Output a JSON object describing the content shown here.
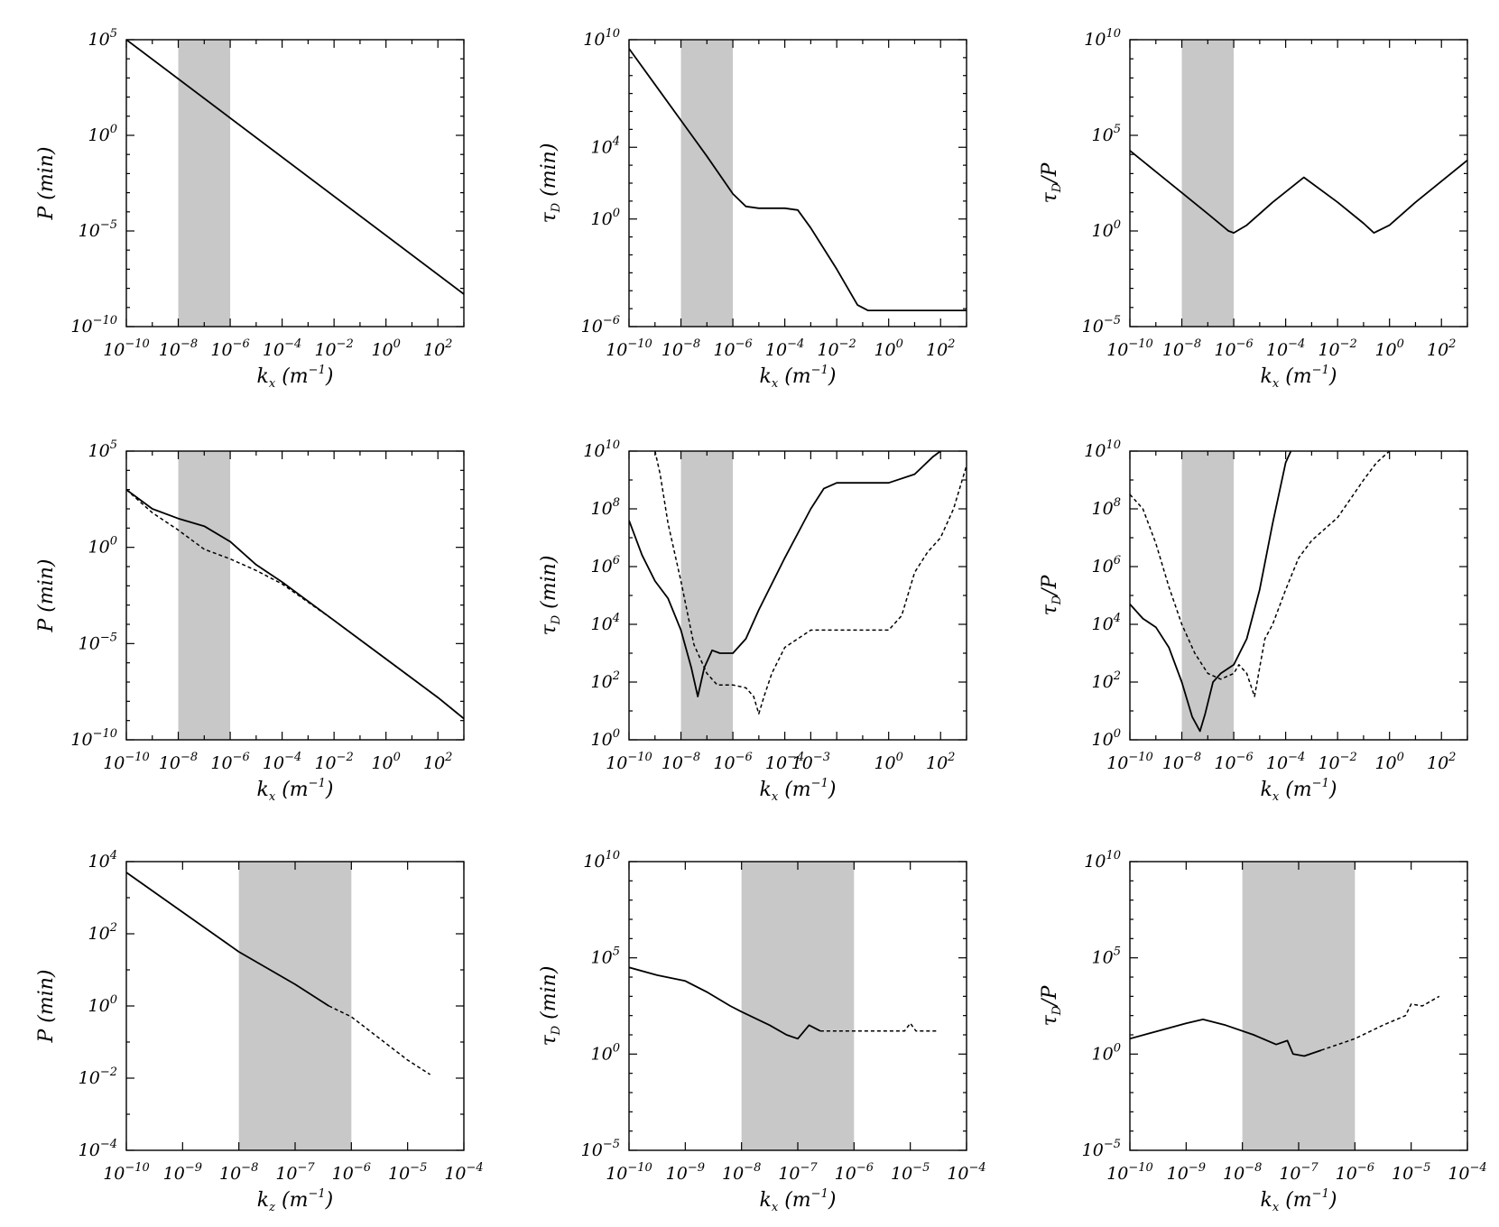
{
  "chart_data": [
    {
      "id": "r1c1",
      "type": "line",
      "x_scale": "log",
      "y_scale": "log",
      "xlabel_main": "k",
      "xlabel_sub": "x",
      "xlabel_unit": " (m",
      "xlabel_exp": "−1",
      "xlabel_close": ")",
      "ylabel_main": "P",
      "ylabel_sub": "",
      "ylabel_unit": " (min)",
      "xlim": [
        -10,
        3
      ],
      "ylim": [
        -10,
        5
      ],
      "x_ticks": [
        -10,
        -8,
        -6,
        -4,
        -2,
        0,
        2
      ],
      "y_ticks": [
        -10,
        -5,
        0,
        5
      ],
      "shaded_band": [
        -8,
        -6
      ],
      "series": [
        {
          "style": "solid",
          "points": [
            [
              -10,
              5
            ],
            [
              3,
              -8.3
            ]
          ]
        }
      ]
    },
    {
      "id": "r1c2",
      "type": "line",
      "x_scale": "log",
      "y_scale": "log",
      "xlabel_main": "k",
      "xlabel_sub": "x",
      "xlabel_unit": " (m",
      "xlabel_exp": "−1",
      "xlabel_close": ")",
      "ylabel_main": "τ",
      "ylabel_sub": "D",
      "ylabel_unit": " (min)",
      "xlim": [
        -10,
        3
      ],
      "ylim": [
        -6,
        10
      ],
      "x_ticks": [
        -10,
        -8,
        -6,
        -4,
        -2,
        0,
        2
      ],
      "y_ticks": [
        -6,
        0,
        4,
        10
      ],
      "shaded_band": [
        -8,
        -6
      ],
      "series": [
        {
          "style": "solid",
          "points": [
            [
              -10,
              9.5
            ],
            [
              -9,
              7.5
            ],
            [
              -8,
              5.5
            ],
            [
              -7,
              3.5
            ],
            [
              -6,
              1.4
            ],
            [
              -5.5,
              0.7
            ],
            [
              -5,
              0.6
            ],
            [
              -4,
              0.6
            ],
            [
              -3.5,
              0.5
            ],
            [
              -3,
              -0.5
            ],
            [
              -2,
              -2.8
            ],
            [
              -1.2,
              -4.8
            ],
            [
              -0.8,
              -5.1
            ],
            [
              0,
              -5.1
            ],
            [
              1,
              -5.1
            ],
            [
              3,
              -5.1
            ]
          ]
        }
      ]
    },
    {
      "id": "r1c3",
      "type": "line",
      "x_scale": "log",
      "y_scale": "log",
      "xlabel_main": "k",
      "xlabel_sub": "x",
      "xlabel_unit": " (m",
      "xlabel_exp": "−1",
      "xlabel_close": ")",
      "ylabel_main": "τ",
      "ylabel_sub": "D",
      "ylabel_unit": "/P",
      "xlim": [
        -10,
        3
      ],
      "ylim": [
        -5,
        10
      ],
      "x_ticks": [
        -10,
        -8,
        -6,
        -4,
        -2,
        0,
        2
      ],
      "y_ticks": [
        -5,
        0,
        5,
        10
      ],
      "shaded_band": [
        -8,
        -6
      ],
      "series": [
        {
          "style": "solid",
          "points": [
            [
              -10,
              4.2
            ],
            [
              -9,
              3.1
            ],
            [
              -8,
              2.0
            ],
            [
              -7,
              0.9
            ],
            [
              -6.2,
              0
            ],
            [
              -6,
              -0.1
            ],
            [
              -5.5,
              0.3
            ],
            [
              -4.5,
              1.5
            ],
            [
              -3.3,
              2.8
            ],
            [
              -2,
              1.5
            ],
            [
              -1,
              0.4
            ],
            [
              -0.6,
              -0.1
            ],
            [
              0,
              0.3
            ],
            [
              1,
              1.5
            ],
            [
              3,
              3.7
            ]
          ]
        }
      ]
    },
    {
      "id": "r2c1",
      "type": "line",
      "x_scale": "log",
      "y_scale": "log",
      "xlabel_main": "k",
      "xlabel_sub": "x",
      "xlabel_unit": " (m",
      "xlabel_exp": "−1",
      "xlabel_close": ")",
      "ylabel_main": "P",
      "ylabel_sub": "",
      "ylabel_unit": " (min)",
      "xlim": [
        -10,
        3
      ],
      "ylim": [
        -10,
        5
      ],
      "x_ticks": [
        -10,
        -8,
        -6,
        -4,
        -2,
        0,
        2
      ],
      "y_ticks": [
        -10,
        -5,
        0,
        5
      ],
      "shaded_band": [
        -8,
        -6
      ],
      "series": [
        {
          "style": "solid",
          "points": [
            [
              -10,
              3
            ],
            [
              -9,
              2.0
            ],
            [
              -8,
              1.5
            ],
            [
              -7,
              1.1
            ],
            [
              -6,
              0.3
            ],
            [
              -5,
              -0.9
            ],
            [
              -4,
              -1.8
            ],
            [
              -2,
              -3.8
            ],
            [
              0,
              -5.8
            ],
            [
              2,
              -7.8
            ],
            [
              3,
              -8.9
            ]
          ]
        },
        {
          "style": "dashed",
          "points": [
            [
              -10,
              3
            ],
            [
              -9,
              1.8
            ],
            [
              -8,
              0.9
            ],
            [
              -7,
              -0.1
            ],
            [
              -6,
              -0.6
            ],
            [
              -5,
              -1.2
            ],
            [
              -4,
              -1.9
            ],
            [
              -2,
              -3.8
            ],
            [
              0,
              -5.8
            ],
            [
              2,
              -7.8
            ],
            [
              3,
              -8.9
            ]
          ]
        }
      ]
    },
    {
      "id": "r2c2",
      "type": "line",
      "x_scale": "log",
      "y_scale": "log",
      "xlabel_main": "k",
      "xlabel_sub": "x",
      "xlabel_unit": " (m",
      "xlabel_exp": "−1",
      "xlabel_close": ")",
      "ylabel_main": "τ",
      "ylabel_sub": "D",
      "ylabel_unit": " (min)",
      "xlim": [
        -10,
        3
      ],
      "ylim": [
        0,
        10
      ],
      "x_ticks": [
        -10,
        -8,
        -6,
        -4,
        -3,
        0,
        2
      ],
      "y_ticks": [
        0,
        2,
        4,
        6,
        8,
        10
      ],
      "shaded_band": [
        -8,
        -6
      ],
      "series": [
        {
          "style": "solid",
          "points": [
            [
              -10,
              7.6
            ],
            [
              -9.5,
              6.4
            ],
            [
              -9,
              5.5
            ],
            [
              -8.5,
              4.9
            ],
            [
              -8,
              3.8
            ],
            [
              -7.6,
              2.5
            ],
            [
              -7.35,
              1.5
            ],
            [
              -7.1,
              2.5
            ],
            [
              -6.8,
              3.1
            ],
            [
              -6.5,
              3.0
            ],
            [
              -6,
              3.0
            ],
            [
              -5.5,
              3.5
            ],
            [
              -5,
              4.5
            ],
            [
              -4,
              6.3
            ],
            [
              -3,
              8.0
            ],
            [
              -2.5,
              8.7
            ],
            [
              -2,
              8.9
            ],
            [
              0,
              8.9
            ],
            [
              1,
              9.2
            ],
            [
              1.7,
              9.8
            ],
            [
              2,
              10
            ]
          ]
        },
        {
          "style": "dashed",
          "points": [
            [
              -9,
              10
            ],
            [
              -8.8,
              9.2
            ],
            [
              -8.5,
              7.5
            ],
            [
              -8,
              5.5
            ],
            [
              -7.5,
              3.3
            ],
            [
              -7,
              2.3
            ],
            [
              -6.6,
              1.9
            ],
            [
              -6,
              1.9
            ],
            [
              -5.5,
              1.8
            ],
            [
              -5.2,
              1.5
            ],
            [
              -5.0,
              0.9
            ],
            [
              -4.8,
              1.5
            ],
            [
              -4.5,
              2.3
            ],
            [
              -4,
              3.2
            ],
            [
              -3,
              3.8
            ],
            [
              -1,
              3.8
            ],
            [
              0,
              3.8
            ],
            [
              0.5,
              4.3
            ],
            [
              1,
              5.8
            ],
            [
              1.5,
              6.5
            ],
            [
              2,
              7.0
            ],
            [
              2.5,
              8.0
            ],
            [
              3,
              9.5
            ]
          ]
        }
      ]
    },
    {
      "id": "r2c3",
      "type": "line",
      "x_scale": "log",
      "y_scale": "log",
      "xlabel_main": "k",
      "xlabel_sub": "x",
      "xlabel_unit": " (m",
      "xlabel_exp": "−1",
      "xlabel_close": ")",
      "ylabel_main": "τ",
      "ylabel_sub": "D",
      "ylabel_unit": "/P",
      "xlim": [
        -10,
        3
      ],
      "ylim": [
        0,
        10
      ],
      "x_ticks": [
        -10,
        -8,
        -6,
        -4,
        -2,
        0,
        2
      ],
      "y_ticks": [
        0,
        2,
        4,
        6,
        8,
        10
      ],
      "shaded_band": [
        -8,
        -6
      ],
      "series": [
        {
          "style": "solid",
          "points": [
            [
              -10,
              4.7
            ],
            [
              -9.5,
              4.2
            ],
            [
              -9,
              3.9
            ],
            [
              -8.5,
              3.2
            ],
            [
              -8,
              2.0
            ],
            [
              -7.6,
              0.8
            ],
            [
              -7.3,
              0.3
            ],
            [
              -7.1,
              0.9
            ],
            [
              -6.8,
              2.0
            ],
            [
              -6.5,
              2.3
            ],
            [
              -6,
              2.6
            ],
            [
              -5.5,
              3.5
            ],
            [
              -5,
              5.2
            ],
            [
              -4.5,
              7.5
            ],
            [
              -4,
              9.6
            ],
            [
              -3.8,
              10
            ]
          ]
        },
        {
          "style": "dashed",
          "points": [
            [
              -10,
              8.5
            ],
            [
              -9.5,
              8.0
            ],
            [
              -9,
              6.8
            ],
            [
              -8.5,
              5.3
            ],
            [
              -8,
              4.0
            ],
            [
              -7.5,
              3.0
            ],
            [
              -7,
              2.3
            ],
            [
              -6.5,
              2.1
            ],
            [
              -6,
              2.3
            ],
            [
              -5.8,
              2.6
            ],
            [
              -5.5,
              2.3
            ],
            [
              -5.2,
              1.5
            ],
            [
              -5,
              2.5
            ],
            [
              -4.8,
              3.5
            ],
            [
              -4.5,
              4.0
            ],
            [
              -4,
              5.2
            ],
            [
              -3.5,
              6.3
            ],
            [
              -3,
              6.9
            ],
            [
              -2,
              7.7
            ],
            [
              -1,
              9.0
            ],
            [
              -0.5,
              9.6
            ],
            [
              0,
              10
            ]
          ]
        }
      ]
    },
    {
      "id": "r3c1",
      "type": "line",
      "x_scale": "log",
      "y_scale": "log",
      "xlabel_main": "k",
      "xlabel_sub": "z",
      "xlabel_unit": " (m",
      "xlabel_exp": "−1",
      "xlabel_close": ")",
      "ylabel_main": "P",
      "ylabel_sub": "",
      "ylabel_unit": " (min)",
      "xlim": [
        -10,
        -4
      ],
      "ylim": [
        -4,
        4
      ],
      "x_ticks": [
        -10,
        -9,
        -8,
        -7,
        -6,
        -5,
        -4
      ],
      "y_ticks": [
        -4,
        -2,
        0,
        2,
        4
      ],
      "shaded_band": [
        -8,
        -6
      ],
      "series": [
        {
          "style": "solid",
          "points": [
            [
              -10,
              3.7
            ],
            [
              -9,
              2.6
            ],
            [
              -8,
              1.5
            ],
            [
              -7,
              0.6
            ],
            [
              -6.4,
              0
            ]
          ]
        },
        {
          "style": "dashed",
          "points": [
            [
              -6.4,
              0
            ],
            [
              -6,
              -0.3
            ],
            [
              -5.5,
              -0.9
            ],
            [
              -5,
              -1.5
            ],
            [
              -4.6,
              -1.9
            ]
          ]
        }
      ]
    },
    {
      "id": "r3c2",
      "type": "line",
      "x_scale": "log",
      "y_scale": "log",
      "xlabel_main": "k",
      "xlabel_sub": "x",
      "xlabel_unit": " (m",
      "xlabel_exp": "−1",
      "xlabel_close": ")",
      "ylabel_main": "τ",
      "ylabel_sub": "D",
      "ylabel_unit": " (min)",
      "xlim": [
        -10,
        -4
      ],
      "ylim": [
        -5,
        10
      ],
      "x_ticks": [
        -10,
        -9,
        -8,
        -7,
        -6,
        -5,
        -4
      ],
      "y_ticks": [
        -5,
        0,
        5,
        10
      ],
      "shaded_band": [
        -8,
        -6
      ],
      "series": [
        {
          "style": "solid",
          "points": [
            [
              -10,
              4.5
            ],
            [
              -9.5,
              4.1
            ],
            [
              -9,
              3.8
            ],
            [
              -8.6,
              3.2
            ],
            [
              -8.2,
              2.5
            ],
            [
              -8,
              2.2
            ],
            [
              -7.5,
              1.5
            ],
            [
              -7.2,
              1.0
            ],
            [
              -7,
              0.8
            ],
            [
              -6.8,
              1.5
            ],
            [
              -6.6,
              1.2
            ]
          ]
        },
        {
          "style": "dashed",
          "points": [
            [
              -6.6,
              1.2
            ],
            [
              -6.2,
              1.2
            ],
            [
              -5.5,
              1.2
            ],
            [
              -5.1,
              1.2
            ],
            [
              -5.0,
              1.6
            ],
            [
              -4.9,
              1.2
            ],
            [
              -4.5,
              1.2
            ]
          ]
        }
      ]
    },
    {
      "id": "r3c3",
      "type": "line",
      "x_scale": "log",
      "y_scale": "log",
      "xlabel_main": "k",
      "xlabel_sub": "x",
      "xlabel_unit": " (m",
      "xlabel_exp": "−1",
      "xlabel_close": ")",
      "ylabel_main": "τ",
      "ylabel_sub": "D",
      "ylabel_unit": "/P",
      "xlim": [
        -10,
        -4
      ],
      "ylim": [
        -5,
        10
      ],
      "x_ticks": [
        -10,
        -9,
        -8,
        -7,
        -6,
        -5,
        -4
      ],
      "y_ticks": [
        -5,
        0,
        5,
        10
      ],
      "shaded_band": [
        -8,
        -6
      ],
      "series": [
        {
          "style": "solid",
          "points": [
            [
              -10,
              0.8
            ],
            [
              -9.5,
              1.2
            ],
            [
              -9,
              1.6
            ],
            [
              -8.7,
              1.8
            ],
            [
              -8.3,
              1.5
            ],
            [
              -7.8,
              1.0
            ],
            [
              -7.4,
              0.5
            ],
            [
              -7.2,
              0.7
            ],
            [
              -7.1,
              0
            ],
            [
              -6.9,
              -0.1
            ],
            [
              -6.6,
              0.2
            ]
          ]
        },
        {
          "style": "dashed",
          "points": [
            [
              -6.6,
              0.2
            ],
            [
              -6,
              0.8
            ],
            [
              -5.5,
              1.5
            ],
            [
              -5.1,
              2.0
            ],
            [
              -5,
              2.6
            ],
            [
              -4.8,
              2.5
            ],
            [
              -4.5,
              3.0
            ]
          ]
        }
      ]
    }
  ]
}
